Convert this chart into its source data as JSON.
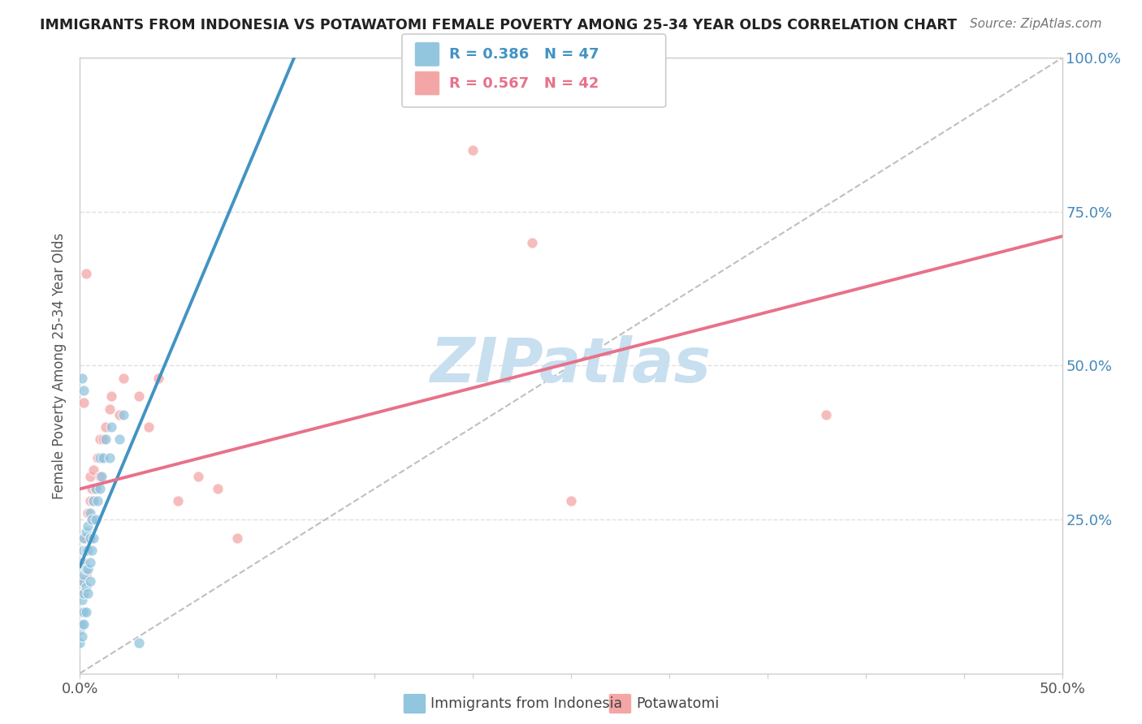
{
  "title": "IMMIGRANTS FROM INDONESIA VS POTAWATOMI FEMALE POVERTY AMONG 25-34 YEAR OLDS CORRELATION CHART",
  "source": "Source: ZipAtlas.com",
  "ylabel": "Female Poverty Among 25-34 Year Olds",
  "xlim": [
    0,
    0.5
  ],
  "ylim": [
    0,
    1.0
  ],
  "xtick_positions": [
    0.0,
    0.05,
    0.1,
    0.15,
    0.2,
    0.25,
    0.3,
    0.35,
    0.4,
    0.45,
    0.5
  ],
  "xtick_labels": [
    "0.0%",
    "",
    "",
    "",
    "",
    "",
    "",
    "",
    "",
    "",
    "50.0%"
  ],
  "ytick_positions": [
    0.0,
    0.25,
    0.5,
    0.75,
    1.0
  ],
  "ytick_labels_right": [
    "",
    "25.0%",
    "50.0%",
    "75.0%",
    "100.0%"
  ],
  "blue_color": "#92c5de",
  "pink_color": "#f4a6a6",
  "blue_line_color": "#4393c3",
  "pink_line_color": "#e8718a",
  "ref_line_color": "#b0b0b0",
  "watermark": "ZIPatlas",
  "watermark_color": "#c8dff0",
  "legend_label_blue": "Immigrants from Indonesia",
  "legend_label_pink": "Potawatomi",
  "background_color": "#ffffff",
  "grid_color": "#e0e0e0",
  "blue_scatter_x": [
    0.0,
    0.0,
    0.001,
    0.001,
    0.001,
    0.001,
    0.001,
    0.001,
    0.001,
    0.002,
    0.002,
    0.002,
    0.002,
    0.002,
    0.002,
    0.003,
    0.003,
    0.003,
    0.003,
    0.003,
    0.004,
    0.004,
    0.004,
    0.004,
    0.005,
    0.005,
    0.005,
    0.005,
    0.006,
    0.006,
    0.007,
    0.007,
    0.008,
    0.008,
    0.009,
    0.01,
    0.01,
    0.011,
    0.012,
    0.013,
    0.015,
    0.016,
    0.02,
    0.022,
    0.001,
    0.002,
    0.03
  ],
  "blue_scatter_y": [
    0.05,
    0.07,
    0.06,
    0.08,
    0.1,
    0.12,
    0.15,
    0.18,
    0.2,
    0.08,
    0.1,
    0.13,
    0.16,
    0.2,
    0.22,
    0.1,
    0.14,
    0.17,
    0.2,
    0.23,
    0.13,
    0.17,
    0.2,
    0.24,
    0.15,
    0.18,
    0.22,
    0.26,
    0.2,
    0.25,
    0.22,
    0.28,
    0.25,
    0.3,
    0.28,
    0.3,
    0.35,
    0.32,
    0.35,
    0.38,
    0.35,
    0.4,
    0.38,
    0.42,
    0.48,
    0.46,
    0.05
  ],
  "pink_scatter_x": [
    0.0,
    0.001,
    0.001,
    0.001,
    0.002,
    0.002,
    0.002,
    0.003,
    0.003,
    0.004,
    0.004,
    0.005,
    0.005,
    0.005,
    0.006,
    0.006,
    0.007,
    0.007,
    0.008,
    0.009,
    0.01,
    0.01,
    0.011,
    0.012,
    0.013,
    0.015,
    0.016,
    0.02,
    0.022,
    0.03,
    0.035,
    0.04,
    0.05,
    0.06,
    0.07,
    0.08,
    0.2,
    0.23,
    0.25,
    0.38,
    0.003,
    0.002
  ],
  "pink_scatter_y": [
    0.08,
    0.1,
    0.15,
    0.2,
    0.13,
    0.18,
    0.22,
    0.16,
    0.22,
    0.2,
    0.26,
    0.22,
    0.28,
    0.32,
    0.25,
    0.3,
    0.28,
    0.33,
    0.3,
    0.35,
    0.32,
    0.38,
    0.35,
    0.38,
    0.4,
    0.43,
    0.45,
    0.42,
    0.48,
    0.45,
    0.4,
    0.48,
    0.28,
    0.32,
    0.3,
    0.22,
    0.85,
    0.7,
    0.28,
    0.42,
    0.65,
    0.44
  ]
}
